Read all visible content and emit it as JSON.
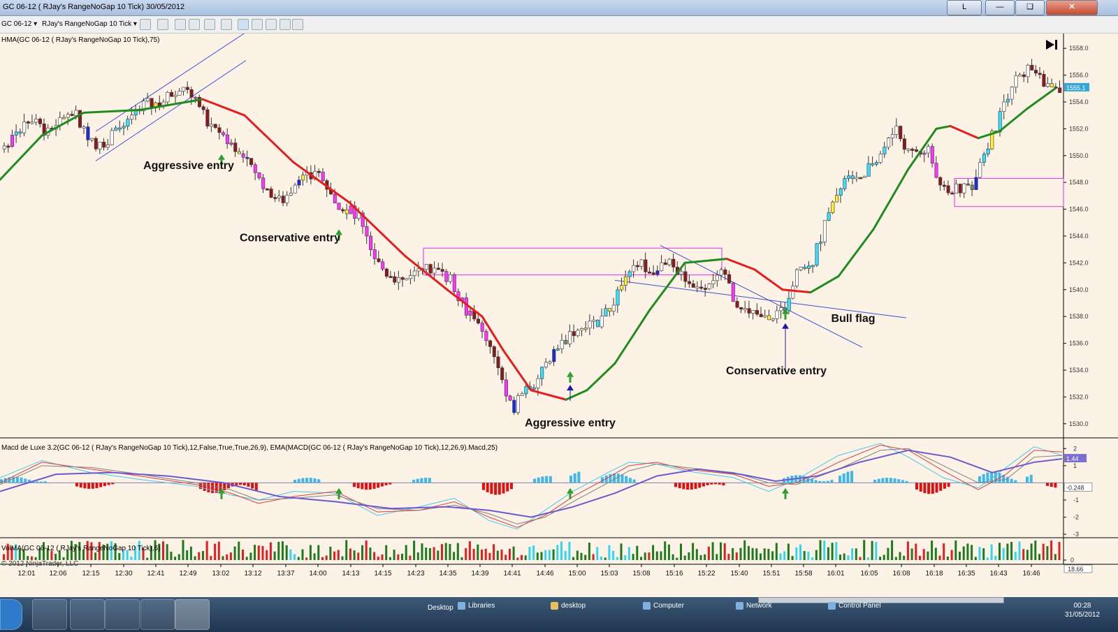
{
  "window": {
    "title": "GC 06-12 ( RJay's RangeNoGap  10 Tick)  30/05/2012",
    "layout_button": "L"
  },
  "toolbar": {
    "instrument": "GC 06-12",
    "bar_type": "RJay's RangeNoGap  10 Tick"
  },
  "taskbar": {
    "links": [
      "Desktop",
      "Libraries",
      "desktop",
      "Computer",
      "Network",
      "Control Panel"
    ],
    "time": "00:28",
    "date": "31/05/2012"
  },
  "chart_data": {
    "type": "candlestick",
    "price_panel": {
      "indicator_label": "HMA(GC 06-12 ( RJay's RangeNoGap  10 Tick),75)",
      "ylim": [
        1529,
        1559
      ],
      "y_ticks": [
        1530,
        1532,
        1534,
        1536,
        1538,
        1540,
        1542,
        1544,
        1546,
        1548,
        1550,
        1552,
        1554,
        1556,
        1558
      ],
      "current_price_label": "1555.1",
      "ma_line": [
        [
          0,
          1548.2
        ],
        [
          60,
          1551.5
        ],
        [
          120,
          1553.2
        ],
        [
          200,
          1553.4
        ],
        [
          290,
          1554.2
        ],
        [
          350,
          1553.0
        ],
        [
          420,
          1549.5
        ],
        [
          500,
          1546.5
        ],
        [
          580,
          1542.5
        ],
        [
          640,
          1540.0
        ],
        [
          690,
          1538.0
        ],
        [
          720,
          1535.5
        ],
        [
          760,
          1532.5
        ],
        [
          810,
          1531.8
        ],
        [
          840,
          1532.5
        ],
        [
          880,
          1534.5
        ],
        [
          930,
          1538.5
        ],
        [
          980,
          1542.0
        ],
        [
          1040,
          1542.3
        ],
        [
          1080,
          1541.5
        ],
        [
          1120,
          1540.0
        ],
        [
          1160,
          1539.8
        ],
        [
          1200,
          1541.0
        ],
        [
          1250,
          1544.5
        ],
        [
          1300,
          1549.0
        ],
        [
          1340,
          1552.0
        ],
        [
          1360,
          1552.2
        ],
        [
          1400,
          1551.3
        ],
        [
          1430,
          1551.8
        ],
        [
          1470,
          1553.5
        ],
        [
          1510,
          1555.0
        ]
      ],
      "trend_lines": [
        [
          [
            137,
            1551.8
          ],
          [
            352,
            1559.2
          ]
        ],
        [
          [
            137,
            1549.6
          ],
          [
            352,
            1557.1
          ]
        ],
        [
          [
            880,
            1540.7
          ],
          [
            1297,
            1537.9
          ]
        ],
        [
          [
            945,
            1543.3
          ],
          [
            1234,
            1535.7
          ]
        ]
      ],
      "boxes": [
        {
          "x1": 606,
          "x2": 1033,
          "top": 1543.1,
          "bottom": 1541.1
        },
        {
          "x1": 1366,
          "x2": 1522,
          "top": 1548.3,
          "bottom": 1546.2
        }
      ],
      "annotations": [
        {
          "text": "Aggressive entry",
          "x": 270,
          "y": 1549.0
        },
        {
          "text": "Conservative entry",
          "x": 415,
          "y": 1543.6
        },
        {
          "text": "Aggressive entry",
          "x": 816,
          "y": 1529.8
        },
        {
          "text": "Conservative entry",
          "x": 1111,
          "y": 1533.7
        },
        {
          "text": "Bull flag",
          "x": 1221,
          "y": 1537.6
        }
      ],
      "arrows": [
        {
          "x": 317,
          "y": 1550.1,
          "color": "#2e9e2e"
        },
        {
          "x": 485,
          "y": 1544.5,
          "color": "#2e9e2e"
        },
        {
          "x": 816,
          "y": 1533.9,
          "color": "#2e9e2e"
        },
        {
          "x": 1124,
          "y": 1538.6,
          "color": "#2e9e2e"
        },
        {
          "x": 816,
          "y": 1532.9,
          "color": "#1a1aa8",
          "stem_to": 1531.7
        },
        {
          "x": 1124,
          "y": 1537.5,
          "color": "#1a1aa8",
          "stem_to": 1534.0
        }
      ],
      "close_path": [
        [
          0,
          1550.5
        ],
        [
          40,
          1552.8
        ],
        [
          70,
          1551.5
        ],
        [
          100,
          1553.5
        ],
        [
          135,
          1550.5
        ],
        [
          170,
          1552.0
        ],
        [
          205,
          1553.8
        ],
        [
          230,
          1554.0
        ],
        [
          262,
          1555.5
        ],
        [
          295,
          1552.5
        ],
        [
          320,
          1551.5
        ],
        [
          350,
          1549.5
        ],
        [
          380,
          1547.5
        ],
        [
          400,
          1546.5
        ],
        [
          430,
          1548.5
        ],
        [
          460,
          1548.5
        ],
        [
          480,
          1546.5
        ],
        [
          510,
          1545.5
        ],
        [
          530,
          1542.5
        ],
        [
          555,
          1541.0
        ],
        [
          580,
          1540.8
        ],
        [
          610,
          1541.5
        ],
        [
          640,
          1541.0
        ],
        [
          665,
          1538.5
        ],
        [
          690,
          1536.5
        ],
        [
          710,
          1534.5
        ],
        [
          730,
          1531.0
        ],
        [
          750,
          1532.5
        ],
        [
          770,
          1533.5
        ],
        [
          790,
          1535.5
        ],
        [
          820,
          1537.0
        ],
        [
          850,
          1537.5
        ],
        [
          870,
          1538.5
        ],
        [
          890,
          1540.5
        ],
        [
          910,
          1542.0
        ],
        [
          935,
          1541.5
        ],
        [
          955,
          1542.0
        ],
        [
          985,
          1540.5
        ],
        [
          1010,
          1540.5
        ],
        [
          1035,
          1541.5
        ],
        [
          1050,
          1539.0
        ],
        [
          1075,
          1538.5
        ],
        [
          1100,
          1537.5
        ],
        [
          1120,
          1538.5
        ],
        [
          1140,
          1542.0
        ],
        [
          1160,
          1542.0
        ],
        [
          1180,
          1545.0
        ],
        [
          1210,
          1548.5
        ],
        [
          1235,
          1548.5
        ],
        [
          1260,
          1550.5
        ],
        [
          1280,
          1552.0
        ],
        [
          1300,
          1550.0
        ],
        [
          1325,
          1550.5
        ],
        [
          1345,
          1547.5
        ],
        [
          1370,
          1547.5
        ],
        [
          1390,
          1547.8
        ],
        [
          1410,
          1550.5
        ],
        [
          1430,
          1553.0
        ],
        [
          1450,
          1555.5
        ],
        [
          1475,
          1556.8
        ],
        [
          1495,
          1555.0
        ],
        [
          1520,
          1555.1
        ]
      ]
    },
    "macd_panel": {
      "label": "Macd de Luxe 3.2(GC 06-12 ( RJay's RangeNoGap  10 Tick),12,False,True,True,26,9), EMA(MACD(GC 06-12 ( RJay's RangeNoGap  10 Tick),12,26,9).Macd,25)",
      "ylim": [
        -3.2,
        2.5
      ],
      "y_ticks": [
        2,
        1,
        -1,
        -2,
        -3
      ],
      "labels": [
        "1.44",
        "-0.248"
      ],
      "series": [
        {
          "name": "macd",
          "color": "#46c8e8",
          "points": [
            [
              0,
              0.3
            ],
            [
              60,
              1.3
            ],
            [
              130,
              0.6
            ],
            [
              200,
              0.2
            ],
            [
              280,
              -0.2
            ],
            [
              330,
              -0.7
            ],
            [
              370,
              -1.0
            ],
            [
              420,
              -0.5
            ],
            [
              480,
              -0.6
            ],
            [
              540,
              -1.9
            ],
            [
              600,
              -1.4
            ],
            [
              650,
              -0.9
            ],
            [
              700,
              -2.2
            ],
            [
              740,
              -2.7
            ],
            [
              780,
              -1.6
            ],
            [
              820,
              -0.5
            ],
            [
              870,
              0.6
            ],
            [
              900,
              1.2
            ],
            [
              940,
              1.1
            ],
            [
              980,
              0.7
            ],
            [
              1050,
              0.3
            ],
            [
              1100,
              -0.5
            ],
            [
              1140,
              0.2
            ],
            [
              1200,
              1.6
            ],
            [
              1260,
              2.3
            ],
            [
              1300,
              1.5
            ],
            [
              1350,
              0.3
            ],
            [
              1400,
              -0.3
            ],
            [
              1440,
              0.9
            ],
            [
              1480,
              2.1
            ],
            [
              1520,
              1.6
            ]
          ]
        },
        {
          "name": "signal",
          "color": "#e03b3b",
          "points": [
            [
              0,
              0.0
            ],
            [
              60,
              1.2
            ],
            [
              130,
              0.8
            ],
            [
              200,
              0.4
            ],
            [
              280,
              -0.1
            ],
            [
              330,
              -0.6
            ],
            [
              370,
              -1.2
            ],
            [
              420,
              -0.8
            ],
            [
              480,
              -0.5
            ],
            [
              540,
              -1.7
            ],
            [
              600,
              -1.6
            ],
            [
              650,
              -1.1
            ],
            [
              700,
              -2.0
            ],
            [
              740,
              -2.6
            ],
            [
              780,
              -1.9
            ],
            [
              820,
              -0.8
            ],
            [
              870,
              0.3
            ],
            [
              900,
              1.0
            ],
            [
              940,
              1.2
            ],
            [
              980,
              0.8
            ],
            [
              1050,
              0.5
            ],
            [
              1100,
              -0.2
            ],
            [
              1140,
              0.0
            ],
            [
              1200,
              1.2
            ],
            [
              1260,
              2.2
            ],
            [
              1300,
              1.9
            ],
            [
              1350,
              0.7
            ],
            [
              1400,
              -0.4
            ],
            [
              1440,
              0.5
            ],
            [
              1480,
              1.9
            ],
            [
              1520,
              1.8
            ]
          ]
        },
        {
          "name": "slow",
          "color": "#808080",
          "points": [
            [
              0,
              -0.1
            ],
            [
              60,
              1.0
            ],
            [
              130,
              0.9
            ],
            [
              200,
              0.5
            ],
            [
              280,
              0.0
            ],
            [
              330,
              -0.4
            ],
            [
              370,
              -1.0
            ],
            [
              420,
              -0.9
            ],
            [
              480,
              -0.7
            ],
            [
              540,
              -1.5
            ],
            [
              600,
              -1.6
            ],
            [
              650,
              -1.3
            ],
            [
              700,
              -1.8
            ],
            [
              740,
              -2.4
            ],
            [
              780,
              -2.0
            ],
            [
              820,
              -1.1
            ],
            [
              870,
              0.0
            ],
            [
              900,
              0.7
            ],
            [
              940,
              1.1
            ],
            [
              980,
              0.9
            ],
            [
              1050,
              0.6
            ],
            [
              1100,
              0.0
            ],
            [
              1140,
              -0.1
            ],
            [
              1200,
              0.8
            ],
            [
              1260,
              1.9
            ],
            [
              1300,
              2.0
            ],
            [
              1350,
              1.0
            ],
            [
              1400,
              0.0
            ],
            [
              1440,
              0.2
            ],
            [
              1480,
              1.5
            ],
            [
              1520,
              1.6
            ]
          ]
        },
        {
          "name": "ema",
          "color": "#6a5acd",
          "points": [
            [
              0,
              -0.5
            ],
            [
              80,
              0.5
            ],
            [
              160,
              0.6
            ],
            [
              240,
              0.4
            ],
            [
              320,
              0.0
            ],
            [
              400,
              -0.8
            ],
            [
              480,
              -1.1
            ],
            [
              560,
              -1.5
            ],
            [
              640,
              -1.4
            ],
            [
              700,
              -1.6
            ],
            [
              760,
              -2.0
            ],
            [
              820,
              -1.4
            ],
            [
              880,
              -0.6
            ],
            [
              940,
              0.4
            ],
            [
              1000,
              0.8
            ],
            [
              1060,
              0.5
            ],
            [
              1110,
              0.1
            ],
            [
              1170,
              0.4
            ],
            [
              1230,
              1.2
            ],
            [
              1300,
              1.9
            ],
            [
              1360,
              1.5
            ],
            [
              1420,
              0.6
            ],
            [
              1480,
              1.2
            ],
            [
              1520,
              1.4
            ]
          ]
        }
      ],
      "histogram": [
        {
          "from": 0,
          "to": 65,
          "color": "#3fb7ea",
          "v": 0.35
        },
        {
          "from": 108,
          "to": 160,
          "color": "#e01010",
          "v": -0.35
        },
        {
          "from": 285,
          "to": 370,
          "color": "#e01010",
          "v": -0.6
        },
        {
          "from": 420,
          "to": 458,
          "color": "#3fb7ea",
          "v": 0.3
        },
        {
          "from": 505,
          "to": 560,
          "color": "#e01010",
          "v": -0.4
        },
        {
          "from": 590,
          "to": 615,
          "color": "#3fb7ea",
          "v": 0.3
        },
        {
          "from": 690,
          "to": 730,
          "color": "#e01010",
          "v": -0.7
        },
        {
          "from": 763,
          "to": 790,
          "color": "#3fb7ea",
          "v": 0.4
        },
        {
          "from": 815,
          "to": 830,
          "color": "#3fb7ea",
          "v": 0.7
        },
        {
          "from": 860,
          "to": 910,
          "color": "#3fb7ea",
          "v": 0.55
        },
        {
          "from": 965,
          "to": 1035,
          "color": "#e01010",
          "v": -0.4
        },
        {
          "from": 1120,
          "to": 1190,
          "color": "#3fb7ea",
          "v": 0.45
        },
        {
          "from": 1200,
          "to": 1218,
          "color": "#3fb7ea",
          "v": 0.7
        },
        {
          "from": 1250,
          "to": 1300,
          "color": "#3fb7ea",
          "v": 0.3
        },
        {
          "from": 1310,
          "to": 1360,
          "color": "#e01010",
          "v": -0.65
        },
        {
          "from": 1400,
          "to": 1452,
          "color": "#3fb7ea",
          "v": 0.65
        },
        {
          "from": 1468,
          "to": 1474,
          "color": "#3fb7ea",
          "v": 0.6
        },
        {
          "from": 1497,
          "to": 1514,
          "color": "#e01010",
          "v": -0.3
        }
      ]
    },
    "volume_panel": {
      "label": "VolMA(GC 06-12 ( RJay's RangeNoGap  10 Tick),6)",
      "copyright": "© 2012 NinjaTrader, LLC",
      "ylim": [
        0,
        1
      ],
      "y_ticks": [
        0
      ],
      "value_label": "18.66"
    },
    "x_ticks": [
      "12:01",
      "12:06",
      "12:15",
      "12:30",
      "12:41",
      "12:49",
      "13:02",
      "13:12",
      "13:37",
      "14:00",
      "14:13",
      "14:15",
      "14:23",
      "14:35",
      "14:39",
      "14:41",
      "14:46",
      "15:00",
      "15:03",
      "15:08",
      "15:16",
      "15:22",
      "15:40",
      "15:51",
      "15:58",
      "16:01",
      "16:05",
      "16:08",
      "16:18",
      "16:35",
      "16:43",
      "16:46"
    ],
    "x_tick_positions": [
      38,
      83,
      130,
      177,
      223,
      269,
      316,
      362,
      409,
      455,
      502,
      548,
      595,
      641,
      687,
      733,
      780,
      826,
      872,
      918,
      965,
      1011,
      1058,
      1104,
      1150,
      1196,
      1244,
      1290,
      1337,
      1383,
      1429,
      1476
    ]
  }
}
